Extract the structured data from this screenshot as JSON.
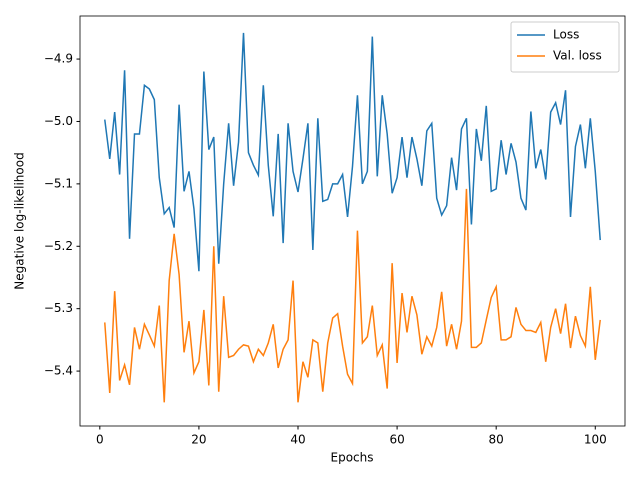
{
  "chart_data": {
    "type": "line",
    "xlabel": "Epochs",
    "ylabel": "Negative log-likelihood",
    "x": [
      1,
      2,
      3,
      4,
      5,
      6,
      7,
      8,
      9,
      10,
      11,
      12,
      13,
      14,
      15,
      16,
      17,
      18,
      19,
      20,
      21,
      22,
      23,
      24,
      25,
      26,
      27,
      28,
      29,
      30,
      31,
      32,
      33,
      34,
      35,
      36,
      37,
      38,
      39,
      40,
      41,
      42,
      43,
      44,
      45,
      46,
      47,
      48,
      49,
      50,
      51,
      52,
      53,
      54,
      55,
      56,
      57,
      58,
      59,
      60,
      61,
      62,
      63,
      64,
      65,
      66,
      67,
      68,
      69,
      70,
      71,
      72,
      73,
      74,
      75,
      76,
      77,
      78,
      79,
      80,
      81,
      82,
      83,
      84,
      85,
      86,
      87,
      88,
      89,
      90,
      91,
      92,
      93,
      94,
      95,
      96,
      97,
      98,
      99,
      100,
      101
    ],
    "series": [
      {
        "name": "Loss",
        "color": "#1f77b4",
        "values": [
          -4.997,
          -5.06,
          -4.985,
          -5.085,
          -4.918,
          -5.188,
          -5.02,
          -5.02,
          -4.942,
          -4.948,
          -4.965,
          -5.09,
          -5.148,
          -5.138,
          -5.17,
          -4.973,
          -5.112,
          -5.08,
          -5.14,
          -5.24,
          -4.92,
          -5.045,
          -5.025,
          -5.228,
          -5.1,
          -5.003,
          -5.103,
          -5.033,
          -4.858,
          -5.05,
          -5.07,
          -5.086,
          -4.942,
          -5.07,
          -5.152,
          -5.02,
          -5.195,
          -5.003,
          -5.08,
          -5.113,
          -5.06,
          -5.003,
          -5.206,
          -4.995,
          -5.128,
          -5.125,
          -5.1,
          -5.1,
          -5.085,
          -5.153,
          -5.072,
          -4.958,
          -5.1,
          -5.08,
          -4.864,
          -5.088,
          -4.958,
          -5.02,
          -5.115,
          -5.09,
          -5.025,
          -5.09,
          -5.025,
          -5.06,
          -5.103,
          -5.015,
          -5.003,
          -5.123,
          -5.15,
          -5.135,
          -5.058,
          -5.11,
          -5.012,
          -4.995,
          -5.165,
          -5.012,
          -5.063,
          -4.975,
          -5.112,
          -5.108,
          -5.03,
          -5.085,
          -5.035,
          -5.065,
          -5.123,
          -5.142,
          -4.984,
          -5.075,
          -5.045,
          -5.093,
          -4.985,
          -4.97,
          -5.005,
          -4.95,
          -5.153,
          -5.04,
          -5.005,
          -5.075,
          -4.995,
          -5.08,
          -5.19
        ]
      },
      {
        "name": "Val. loss",
        "color": "#ff7f0e",
        "values": [
          -5.322,
          -5.435,
          -5.272,
          -5.415,
          -5.39,
          -5.422,
          -5.33,
          -5.365,
          -5.325,
          -5.342,
          -5.36,
          -5.295,
          -5.45,
          -5.255,
          -5.18,
          -5.245,
          -5.37,
          -5.32,
          -5.403,
          -5.385,
          -5.302,
          -5.423,
          -5.2,
          -5.433,
          -5.28,
          -5.378,
          -5.375,
          -5.365,
          -5.358,
          -5.36,
          -5.385,
          -5.365,
          -5.375,
          -5.355,
          -5.325,
          -5.395,
          -5.365,
          -5.35,
          -5.255,
          -5.45,
          -5.385,
          -5.41,
          -5.35,
          -5.355,
          -5.433,
          -5.355,
          -5.315,
          -5.308,
          -5.36,
          -5.405,
          -5.42,
          -5.175,
          -5.355,
          -5.345,
          -5.295,
          -5.375,
          -5.358,
          -5.428,
          -5.227,
          -5.387,
          -5.275,
          -5.338,
          -5.28,
          -5.31,
          -5.373,
          -5.345,
          -5.36,
          -5.33,
          -5.273,
          -5.36,
          -5.325,
          -5.365,
          -5.32,
          -5.108,
          -5.362,
          -5.362,
          -5.355,
          -5.318,
          -5.282,
          -5.265,
          -5.35,
          -5.35,
          -5.345,
          -5.298,
          -5.325,
          -5.335,
          -5.335,
          -5.338,
          -5.322,
          -5.385,
          -5.33,
          -5.3,
          -5.34,
          -5.292,
          -5.363,
          -5.312,
          -5.343,
          -5.36,
          -5.265,
          -5.382,
          -5.318
        ]
      }
    ],
    "xlim": [
      -4,
      106
    ],
    "xticks": [
      0,
      20,
      40,
      60,
      80,
      100
    ],
    "ylim": [
      -5.488,
      -4.831
    ],
    "yticks": [
      {
        "value": -5.4,
        "label": "−5.4"
      },
      {
        "value": -5.3,
        "label": "−5.3"
      },
      {
        "value": -5.2,
        "label": "−5.2"
      },
      {
        "value": -5.1,
        "label": "−5.1"
      },
      {
        "value": -5.0,
        "label": "−5.0"
      },
      {
        "value": -4.9,
        "label": "−4.9"
      }
    ],
    "legend": "upper right"
  }
}
